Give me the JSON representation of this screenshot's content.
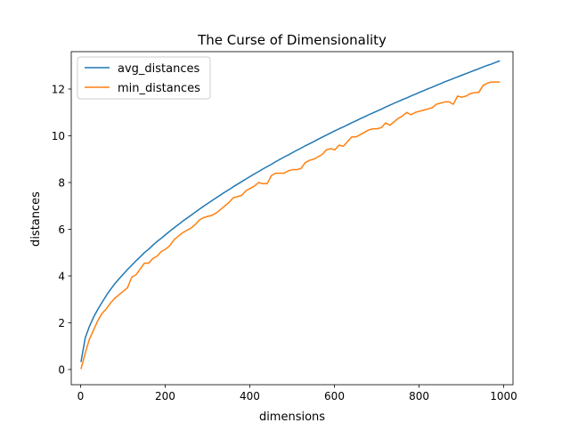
{
  "chart_data": {
    "type": "line",
    "title": "The Curse of Dimensionality",
    "xlabel": "dimensions",
    "ylabel": "distances",
    "xlim": [
      -22,
      1022
    ],
    "ylim": [
      -0.65,
      13.6
    ],
    "xticks": [
      0,
      200,
      400,
      600,
      800,
      1000
    ],
    "yticks": [
      0,
      2,
      4,
      6,
      8,
      10,
      12
    ],
    "grid": false,
    "legend_position": "upper-left",
    "x": [
      1,
      11,
      21,
      31,
      41,
      51,
      61,
      71,
      81,
      91,
      101,
      111,
      121,
      131,
      141,
      151,
      161,
      171,
      181,
      191,
      201,
      211,
      221,
      231,
      241,
      251,
      261,
      271,
      281,
      291,
      301,
      311,
      321,
      331,
      341,
      351,
      361,
      371,
      381,
      391,
      401,
      411,
      421,
      431,
      441,
      451,
      461,
      471,
      481,
      491,
      501,
      511,
      521,
      531,
      541,
      551,
      561,
      571,
      581,
      591,
      601,
      611,
      621,
      631,
      641,
      651,
      661,
      671,
      681,
      691,
      701,
      711,
      721,
      731,
      741,
      751,
      761,
      771,
      781,
      791,
      801,
      811,
      821,
      831,
      841,
      851,
      861,
      871,
      881,
      891,
      901,
      911,
      921,
      931,
      941,
      951,
      961,
      971,
      981,
      991
    ],
    "series": [
      {
        "name": "avg_distances",
        "color": "#1f77b4",
        "values": [
          0.32,
          1.35,
          1.85,
          2.25,
          2.58,
          2.88,
          3.17,
          3.43,
          3.67,
          3.88,
          4.08,
          4.28,
          4.46,
          4.65,
          4.82,
          5.0,
          5.15,
          5.32,
          5.48,
          5.62,
          5.77,
          5.92,
          6.06,
          6.2,
          6.34,
          6.47,
          6.6,
          6.73,
          6.86,
          6.99,
          7.11,
          7.23,
          7.35,
          7.47,
          7.59,
          7.7,
          7.82,
          7.93,
          8.04,
          8.15,
          8.26,
          8.37,
          8.47,
          8.58,
          8.68,
          8.78,
          8.89,
          8.99,
          9.09,
          9.18,
          9.28,
          9.38,
          9.47,
          9.57,
          9.66,
          9.75,
          9.85,
          9.94,
          10.03,
          10.12,
          10.21,
          10.3,
          10.38,
          10.47,
          10.56,
          10.64,
          10.73,
          10.81,
          10.9,
          10.98,
          11.06,
          11.14,
          11.23,
          11.31,
          11.39,
          11.47,
          11.55,
          11.62,
          11.7,
          11.78,
          11.86,
          11.93,
          12.01,
          12.08,
          12.16,
          12.23,
          12.31,
          12.38,
          12.45,
          12.52,
          12.59,
          12.66,
          12.73,
          12.8,
          12.87,
          12.94,
          13.01,
          13.07,
          13.14,
          13.21
        ]
      },
      {
        "name": "min_distances",
        "color": "#ff7f0e",
        "values": [
          0.02,
          0.7,
          1.3,
          1.7,
          2.1,
          2.4,
          2.6,
          2.85,
          3.05,
          3.2,
          3.35,
          3.5,
          3.95,
          4.05,
          4.3,
          4.55,
          4.55,
          4.75,
          4.85,
          5.05,
          5.15,
          5.3,
          5.55,
          5.7,
          5.85,
          5.95,
          6.05,
          6.2,
          6.4,
          6.5,
          6.55,
          6.6,
          6.7,
          6.85,
          7.0,
          7.15,
          7.35,
          7.4,
          7.45,
          7.65,
          7.75,
          7.85,
          8.0,
          7.95,
          7.95,
          8.3,
          8.4,
          8.4,
          8.4,
          8.5,
          8.55,
          8.55,
          8.6,
          8.85,
          8.95,
          9.0,
          9.1,
          9.2,
          9.4,
          9.45,
          9.4,
          9.6,
          9.55,
          9.75,
          9.95,
          9.95,
          10.05,
          10.15,
          10.25,
          10.3,
          10.3,
          10.35,
          10.55,
          10.45,
          10.6,
          10.75,
          10.85,
          11.0,
          10.9,
          11.0,
          11.05,
          11.1,
          11.15,
          11.2,
          11.35,
          11.4,
          11.45,
          11.45,
          11.35,
          11.7,
          11.65,
          11.7,
          11.8,
          11.85,
          11.85,
          12.15,
          12.25,
          12.3,
          12.3,
          12.3
        ]
      }
    ]
  }
}
